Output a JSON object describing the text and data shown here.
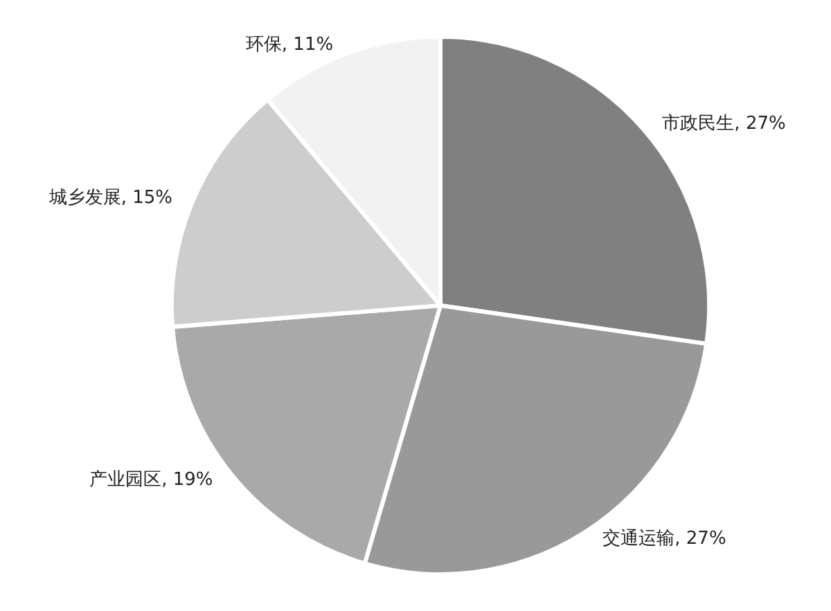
{
  "chart_data": {
    "type": "pie",
    "categories": [
      "市政民生",
      "交通运输",
      "产业园区",
      "城乡发展",
      "环保"
    ],
    "values": [
      27,
      27,
      19,
      15,
      11
    ],
    "value_labels": [
      ", 27%",
      ", 27%",
      ", 19%",
      ", 15%",
      ", 11%"
    ],
    "colors": [
      "#808080",
      "#999999",
      "#a9a9a9",
      "#cdcdcd",
      "#f2f2f2"
    ],
    "legend": false
  }
}
